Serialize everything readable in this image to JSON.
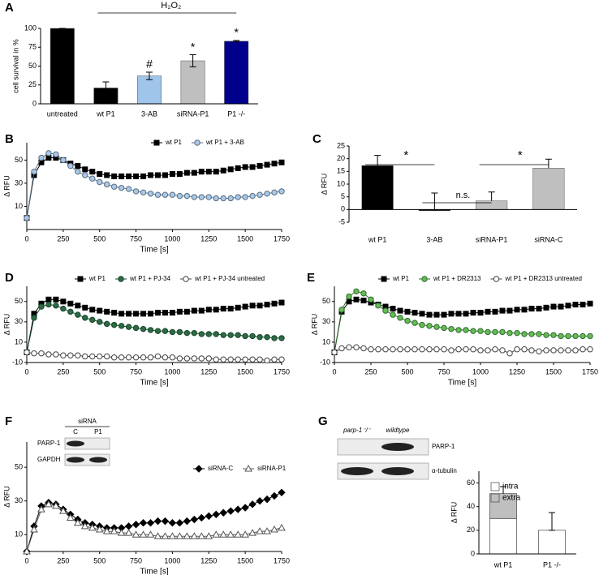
{
  "chart_data": [
    {
      "type": "bar",
      "label": "A",
      "ylabel": "cell survival in %",
      "categories": [
        "untreated",
        "wt P1",
        "3-AB",
        "siRNA-P1",
        "P1 -/-"
      ],
      "values": [
        100,
        21,
        37,
        57,
        83
      ],
      "errors": [
        0,
        8,
        5,
        8,
        1
      ],
      "error_direction": "both",
      "colors": [
        "#000000",
        "#000000",
        "#9fc5ea",
        "#bfbfbf",
        "#00008b"
      ],
      "bar_labels": [
        null,
        null,
        "#",
        "*",
        "*"
      ],
      "brackets": [
        {
          "label": "H₂O₂",
          "from": "wt P1",
          "to": "P1 -/-"
        }
      ],
      "ylim": [
        0,
        100
      ],
      "yticks": [
        0,
        25,
        50,
        75,
        100
      ]
    },
    {
      "type": "line",
      "label": "B",
      "xlabel": "Time [s]",
      "ylabel": "Δ RFU",
      "x": [
        0,
        50,
        100,
        150,
        200,
        250,
        300,
        350,
        400,
        450,
        500,
        550,
        600,
        650,
        700,
        750,
        800,
        850,
        900,
        950,
        1000,
        1050,
        1100,
        1150,
        1200,
        1250,
        1300,
        1350,
        1400,
        1450,
        1500,
        1550,
        1600,
        1650,
        1700,
        1750
      ],
      "series": [
        {
          "name": "wt P1",
          "color": "#000000",
          "fill": "#000000",
          "marker": "square",
          "values": [
            0,
            37,
            48,
            52,
            52,
            50,
            47,
            45,
            42,
            40,
            38,
            37,
            36,
            36,
            36,
            36,
            36,
            37,
            37,
            37,
            38,
            38,
            39,
            39,
            40,
            40,
            40,
            41,
            42,
            43,
            44,
            44,
            45,
            46,
            47,
            48
          ]
        },
        {
          "name": "wt P1 + 3-AB",
          "color": "#5a6e80",
          "fill": "#a9c9e8",
          "marker": "circle",
          "values": [
            0,
            40,
            52,
            56,
            55,
            50,
            45,
            40,
            37,
            34,
            31,
            29,
            27,
            26,
            25,
            23,
            22,
            21,
            20,
            20,
            20,
            19,
            19,
            18,
            18,
            18,
            17,
            17,
            17,
            18,
            18,
            19,
            20,
            21,
            22,
            23
          ]
        }
      ],
      "xlim": [
        0,
        1750
      ],
      "xticks": [
        0,
        250,
        500,
        750,
        1000,
        1250,
        1500,
        1750
      ],
      "ylim": [
        -10,
        65
      ],
      "yticks": [
        10,
        30,
        50
      ]
    },
    {
      "type": "bar",
      "label": "C",
      "ylabel": "Δ RFU",
      "categories": [
        "wt P1",
        "3-AB",
        "siRNA-P1",
        "siRNA-C"
      ],
      "values": [
        17.3,
        -0.5,
        3.4,
        16.3
      ],
      "errors": [
        4,
        7,
        3.5,
        3.5
      ],
      "error_direction": "up",
      "colors": [
        "#000000",
        "#000000",
        "#bfbfbf",
        "#bfbfbf"
      ],
      "brackets": [
        {
          "label": "*",
          "from": "wt P1",
          "to": "3-AB"
        },
        {
          "label": "n.s.",
          "from": "3-AB",
          "to": "siRNA-P1"
        },
        {
          "label": "*",
          "from": "siRNA-P1",
          "to": "siRNA-C"
        }
      ],
      "ylim": [
        -5,
        25
      ],
      "yticks": [
        -5,
        0,
        5,
        10,
        15,
        20,
        25
      ]
    },
    {
      "type": "line",
      "label": "D",
      "xlabel": "Time [s]",
      "ylabel": "Δ RFU",
      "x": [
        0,
        50,
        100,
        150,
        200,
        250,
        300,
        350,
        400,
        450,
        500,
        550,
        600,
        650,
        700,
        750,
        800,
        850,
        900,
        950,
        1000,
        1050,
        1100,
        1150,
        1200,
        1250,
        1300,
        1350,
        1400,
        1450,
        1500,
        1550,
        1600,
        1650,
        1700,
        1750
      ],
      "series": [
        {
          "name": "wt P1",
          "color": "#000000",
          "fill": "#000000",
          "marker": "square",
          "values": [
            0,
            38,
            48,
            52,
            52,
            50,
            48,
            46,
            44,
            42,
            41,
            40,
            39,
            38,
            38,
            38,
            38,
            38,
            39,
            39,
            39,
            40,
            40,
            41,
            41,
            42,
            42,
            43,
            43,
            44,
            45,
            46,
            46,
            47,
            48,
            49
          ]
        },
        {
          "name": "wt P1 + PJ-34",
          "color": "#14452a",
          "fill": "#2e6b45",
          "marker": "circle",
          "values": [
            0,
            34,
            45,
            47,
            46,
            43,
            40,
            37,
            34,
            32,
            30,
            28,
            27,
            26,
            25,
            24,
            23,
            22,
            21,
            21,
            20,
            20,
            19,
            19,
            18,
            18,
            18,
            17,
            17,
            17,
            16,
            16,
            15,
            15,
            14,
            14
          ]
        },
        {
          "name": "wt P1 + PJ-34 untreated",
          "color": "#444444",
          "fill": "#ffffff",
          "marker": "circle",
          "values": [
            0,
            -1,
            -1,
            -2,
            -2,
            -3,
            -3,
            -3,
            -4,
            -4,
            -4,
            -4,
            -5,
            -5,
            -5,
            -5,
            -5,
            -5,
            -4,
            -5,
            -5,
            -6,
            -6,
            -6,
            -6,
            -6,
            -7,
            -7,
            -7,
            -7,
            -7,
            -7,
            -7,
            -8,
            -7,
            -7
          ]
        }
      ],
      "xlim": [
        0,
        1750
      ],
      "xticks": [
        0,
        250,
        500,
        750,
        1000,
        1250,
        1500,
        1750
      ],
      "ylim": [
        -10,
        65
      ],
      "yticks": [
        -10,
        10,
        30,
        50
      ]
    },
    {
      "type": "line",
      "label": "E",
      "xlabel": "Time [s]",
      "ylabel": "Δ RFU",
      "x": [
        0,
        50,
        100,
        150,
        200,
        250,
        300,
        350,
        400,
        450,
        500,
        550,
        600,
        650,
        700,
        750,
        800,
        850,
        900,
        950,
        1000,
        1050,
        1100,
        1150,
        1200,
        1250,
        1300,
        1350,
        1400,
        1450,
        1500,
        1550,
        1600,
        1650,
        1700,
        1750
      ],
      "series": [
        {
          "name": "wt P1",
          "color": "#000000",
          "fill": "#000000",
          "marker": "square",
          "values": [
            0,
            40,
            50,
            52,
            51,
            49,
            47,
            45,
            43,
            41,
            40,
            39,
            38,
            37,
            37,
            37,
            38,
            38,
            38,
            39,
            39,
            40,
            40,
            41,
            41,
            42,
            42,
            43,
            43,
            44,
            45,
            45,
            46,
            47,
            47,
            48
          ]
        },
        {
          "name": "wt P1 + DR2313",
          "color": "#2f6d2f",
          "fill": "#66bb55",
          "marker": "circle",
          "values": [
            0,
            42,
            55,
            60,
            58,
            52,
            46,
            41,
            37,
            34,
            31,
            29,
            27,
            26,
            25,
            24,
            23,
            22,
            22,
            21,
            21,
            20,
            20,
            20,
            19,
            19,
            18,
            18,
            18,
            17,
            17,
            16,
            16,
            16,
            16,
            16
          ]
        },
        {
          "name": "wt P1 + DR2313 untreated",
          "color": "#444444",
          "fill": "#ffffff",
          "marker": "circle",
          "values": [
            0,
            4,
            5,
            5,
            4,
            3,
            3,
            3,
            3,
            3,
            3,
            3,
            3,
            3,
            3,
            3,
            2,
            3,
            3,
            3,
            2,
            2,
            3,
            2,
            -1,
            3,
            3,
            2,
            1,
            2,
            2,
            2,
            2,
            2,
            3,
            3
          ]
        }
      ],
      "xlim": [
        0,
        1750
      ],
      "xticks": [
        0,
        250,
        500,
        750,
        1000,
        1250,
        1500,
        1750
      ],
      "ylim": [
        -10,
        65
      ],
      "yticks": [
        -10,
        10,
        30,
        50
      ]
    },
    {
      "type": "line",
      "label": "F",
      "xlabel": "Time [s]",
      "ylabel": "Δ RFU",
      "x": [
        0,
        50,
        100,
        150,
        200,
        250,
        300,
        350,
        400,
        450,
        500,
        550,
        600,
        650,
        700,
        750,
        800,
        850,
        900,
        950,
        1000,
        1050,
        1100,
        1150,
        1200,
        1250,
        1300,
        1350,
        1400,
        1450,
        1500,
        1550,
        1600,
        1650,
        1700,
        1750
      ],
      "series": [
        {
          "name": "siRNA-C",
          "color": "#000000",
          "fill": "#000000",
          "marker": "diamond",
          "values": [
            0,
            15,
            27,
            29,
            28,
            25,
            22,
            19,
            17,
            16,
            15,
            14,
            14,
            14,
            15,
            16,
            17,
            17,
            18,
            18,
            17,
            17,
            18,
            19,
            20,
            21,
            22,
            23,
            24,
            25,
            26,
            28,
            30,
            31,
            33,
            35
          ]
        },
        {
          "name": "siRNA-P1",
          "color": "#555555",
          "fill": "#ffffff",
          "marker": "triangle",
          "values": [
            0,
            13,
            25,
            28,
            27,
            24,
            20,
            17,
            15,
            14,
            13,
            12,
            12,
            11,
            11,
            10,
            10,
            10,
            9,
            9,
            9,
            9,
            9,
            9,
            9,
            9,
            10,
            10,
            10,
            10,
            10,
            11,
            12,
            12,
            13,
            14
          ]
        }
      ],
      "blot": {
        "header": "siRNA",
        "lanes": [
          "C",
          "P1"
        ],
        "rows": [
          "PARP-1",
          "GAPDH"
        ]
      },
      "xlim": [
        0,
        1750
      ],
      "xticks": [
        0,
        250,
        500,
        750,
        1000,
        1250,
        1500,
        1750
      ],
      "ylim": [
        0,
        65
      ],
      "yticks": [
        10,
        30,
        50
      ]
    },
    {
      "type": "stacked_bar",
      "label": "G",
      "ylabel": "Δ RFU",
      "categories": [
        "wt P1",
        "P1 -/-"
      ],
      "series": [
        {
          "name": "intra",
          "color": "#ffffff",
          "values": [
            30,
            20
          ],
          "errors": [
            8,
            15
          ]
        },
        {
          "name": "extra",
          "color": "#bfbfbf",
          "values": [
            21,
            0
          ],
          "errors": [
            6,
            0
          ]
        }
      ],
      "error_direction": "up",
      "blot": {
        "lanes": [
          "parp-1⁻/⁻",
          "wildtype"
        ],
        "rows": [
          "PARP-1",
          "α-tubulin"
        ]
      },
      "ylim": [
        0,
        70
      ],
      "yticks": [
        0,
        20,
        40,
        60
      ]
    }
  ]
}
